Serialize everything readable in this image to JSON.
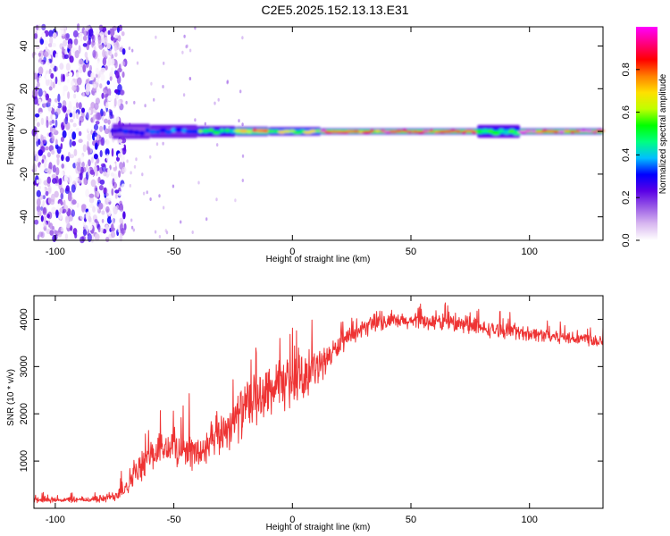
{
  "page": {
    "title": "C2E5.2025.152.13.13.E31"
  },
  "chart_data": [
    {
      "type": "heatmap",
      "title": "C2E5.2025.152.13.13.E31",
      "xlabel": "Height of straight line (km)",
      "ylabel": "Frequency (Hz)",
      "xlim": [
        -109,
        131
      ],
      "ylim": [
        -51,
        49
      ],
      "xticks": [
        -100,
        -50,
        0,
        50,
        100
      ],
      "yticks": [
        -40,
        -20,
        0,
        20,
        40
      ],
      "grid": false,
      "signal_band": {
        "frequency": 0,
        "x_start": -76,
        "x_end": 131,
        "segments": [
          {
            "x": [
              -76,
              -60
            ],
            "halfwidth": 3.5,
            "amplitude": 0.3
          },
          {
            "x": [
              -60,
              -40
            ],
            "halfwidth": 3.0,
            "amplitude": 0.35
          },
          {
            "x": [
              -40,
              -24
            ],
            "halfwidth": 2.5,
            "amplitude": 0.55
          },
          {
            "x": [
              -24,
              -10
            ],
            "halfwidth": 2.2,
            "amplitude": 0.8
          },
          {
            "x": [
              -10,
              12
            ],
            "halfwidth": 2.0,
            "amplitude": 0.65
          },
          {
            "x": [
              12,
              78
            ],
            "halfwidth": 1.5,
            "amplitude": 0.9
          },
          {
            "x": [
              78,
              96
            ],
            "halfwidth": 3.0,
            "amplitude": 0.55
          },
          {
            "x": [
              96,
              131
            ],
            "halfwidth": 1.5,
            "amplitude": 0.95
          }
        ]
      },
      "noise_region": {
        "x": [
          -109,
          -72
        ],
        "amplitude_range": [
          0.0,
          0.3
        ]
      },
      "colorbar": {
        "label": "Normalized spectral amplitude",
        "range": [
          0.0,
          1.0
        ],
        "ticks": [
          "0.0",
          "0.2",
          "0.4",
          "0.6",
          "0.8"
        ],
        "tick_values": [
          0.0,
          0.2,
          0.4,
          0.6,
          0.8
        ],
        "colors": [
          "#ffffff",
          "#d9b8f0",
          "#9b5ce6",
          "#5a00e6",
          "#0000ff",
          "#00bfff",
          "#00ff80",
          "#00ff00",
          "#bfff00",
          "#ffe000",
          "#ff8000",
          "#ff0000",
          "#ff0080",
          "#ff00ff"
        ]
      }
    },
    {
      "type": "line",
      "xlabel": "Height of straight line (km)",
      "ylabel": "SNR (10 * v/v)",
      "xlim": [
        -109,
        131
      ],
      "ylim": [
        0,
        4500
      ],
      "xticks": [
        -100,
        -50,
        0,
        50,
        100
      ],
      "yticks": [
        1000,
        2000,
        3000,
        4000
      ],
      "grid": false,
      "series": [
        {
          "color": "#ee3333",
          "x": [
            -109,
            -100,
            -90,
            -80,
            -75,
            -70,
            -65,
            -60,
            -55,
            -50,
            -45,
            -40,
            -35,
            -30,
            -25,
            -20,
            -15,
            -10,
            -5,
            0,
            5,
            10,
            15,
            20,
            25,
            30,
            35,
            40,
            50,
            60,
            70,
            80,
            90,
            100,
            110,
            120,
            131
          ],
          "y": [
            180,
            180,
            180,
            200,
            260,
            500,
            800,
            1100,
            1250,
            1300,
            1250,
            1150,
            1300,
            1600,
            1850,
            2100,
            2300,
            2450,
            2600,
            2700,
            2800,
            2950,
            3200,
            3450,
            3650,
            3800,
            3900,
            3950,
            3950,
            3950,
            3900,
            3800,
            3750,
            3700,
            3650,
            3600,
            3550
          ],
          "spread": [
            70,
            70,
            70,
            100,
            150,
            300,
            350,
            400,
            450,
            450,
            450,
            450,
            500,
            550,
            600,
            650,
            650,
            650,
            650,
            600,
            550,
            450,
            350,
            250,
            200,
            200,
            200,
            200,
            200,
            200,
            200,
            200,
            180,
            180,
            180,
            180,
            180
          ]
        }
      ]
    }
  ]
}
